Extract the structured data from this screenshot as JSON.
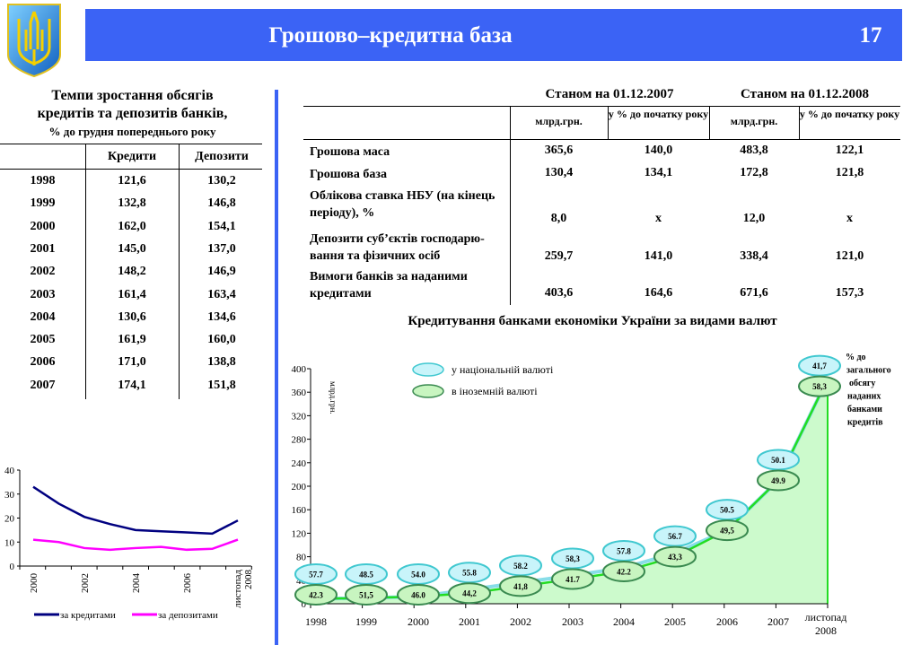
{
  "header": {
    "title": "Грошово–кредитна база",
    "page_number": "17",
    "brand_color": "#3b63f5"
  },
  "left_table": {
    "title_line1": "Темпи зростання обсягів",
    "title_line2": "кредитів та депозитів банків,",
    "subtitle": "% до грудня попереднього року",
    "columns": [
      "",
      "Кредити",
      "Депозити"
    ],
    "rows": [
      [
        "1998",
        "121,6",
        "130,2"
      ],
      [
        "1999",
        "132,8",
        "146,8"
      ],
      [
        "2000",
        "162,0",
        "154,1"
      ],
      [
        "2001",
        "145,0",
        "137,0"
      ],
      [
        "2002",
        "148,2",
        "146,9"
      ],
      [
        "2003",
        "161,4",
        "163,4"
      ],
      [
        "2004",
        "130,6",
        "134,6"
      ],
      [
        "2005",
        "161,9",
        "160,0"
      ],
      [
        "2006",
        "171,0",
        "138,8"
      ],
      [
        "2007",
        "174,1",
        "151,8"
      ]
    ]
  },
  "right_table": {
    "group_headers": [
      "Станом на 01.12.2007",
      "Станом на 01.12.2008"
    ],
    "sub_headers": [
      "млрд.грн.",
      "у % до початку року",
      "млрд.грн.",
      "у % до початку року"
    ],
    "rows": [
      {
        "label": "Грошова маса",
        "values": [
          "365,6",
          "140,0",
          "483,8",
          "122,1"
        ]
      },
      {
        "label": "Грошова база",
        "values": [
          "130,4",
          "134,1",
          "172,8",
          "121,8"
        ]
      },
      {
        "label": "Облікова ставка НБУ (на кінець періоду), %",
        "values": [
          "8,0",
          "х",
          "12,0",
          "х"
        ]
      },
      {
        "label": "Депозити суб’єктів господарю-вання та фізичних осіб",
        "values": [
          "259,7",
          "141,0",
          "338,4",
          "121,0"
        ]
      },
      {
        "label": "Вимоги банків за наданими кредитами",
        "values": [
          "403,6",
          "164,6",
          "671,6",
          "157,3"
        ]
      }
    ]
  },
  "chart_data": [
    {
      "type": "line",
      "title": "",
      "categories": [
        "2000",
        "2001",
        "2002",
        "2003",
        "2004",
        "2005",
        "2006",
        "2007",
        "листопад 2008"
      ],
      "tick_labels": [
        "2000",
        "2002",
        "2004",
        "2006",
        "листопад 2008"
      ],
      "ylim": [
        0,
        40
      ],
      "yticks": [
        0,
        10,
        20,
        30,
        40
      ],
      "series": [
        {
          "name": "за кредитами",
          "color": "#000080",
          "values": [
            33,
            26,
            20.5,
            17.5,
            15,
            14.5,
            14,
            13.5,
            19
          ]
        },
        {
          "name": "за депозитами",
          "color": "#ff00ff",
          "values": [
            11,
            10,
            7.5,
            6.8,
            7.5,
            8,
            6.8,
            7.2,
            11
          ]
        }
      ],
      "legend": "bottom"
    },
    {
      "type": "area",
      "title": "Кредитування банками економіки України за видами валют",
      "ylabel": "млрд.грн.",
      "ylim": [
        0,
        400
      ],
      "yticks": [
        0,
        40,
        80,
        120,
        160,
        200,
        240,
        280,
        320,
        360,
        400
      ],
      "categories": [
        "1998",
        "1999",
        "2000",
        "2001",
        "2002",
        "2003",
        "2004",
        "2005",
        "2006",
        "2007",
        "листопад 2008"
      ],
      "total_values": [
        8,
        10,
        12,
        18,
        30,
        42,
        55,
        80,
        125,
        210,
        370
      ],
      "series": [
        {
          "name": "у національній валюті",
          "color": "#c8f4fa",
          "pct": [
            "57.7",
            "48.5",
            "54.0",
            "55.8",
            "58.2",
            "58,3",
            "57.8",
            "56.7",
            "50.5",
            "50.1",
            "41,7"
          ]
        },
        {
          "name": "в іноземній валюті",
          "color": "#c8f5c0",
          "pct": [
            "42.3",
            "51,5",
            "46.0",
            "44,2",
            "41,8",
            "41.7",
            "42.2",
            "43,3",
            "49,5",
            "49.9",
            "58,3"
          ]
        }
      ],
      "annotation": "% до загального обсягу наданих банками кредитів",
      "annotation_lines": [
        "% до",
        "загального",
        "обсягу",
        "наданих",
        "банками",
        "кредитів"
      ],
      "area_color": "#ccfacc",
      "line_color": "#22dd22"
    }
  ]
}
